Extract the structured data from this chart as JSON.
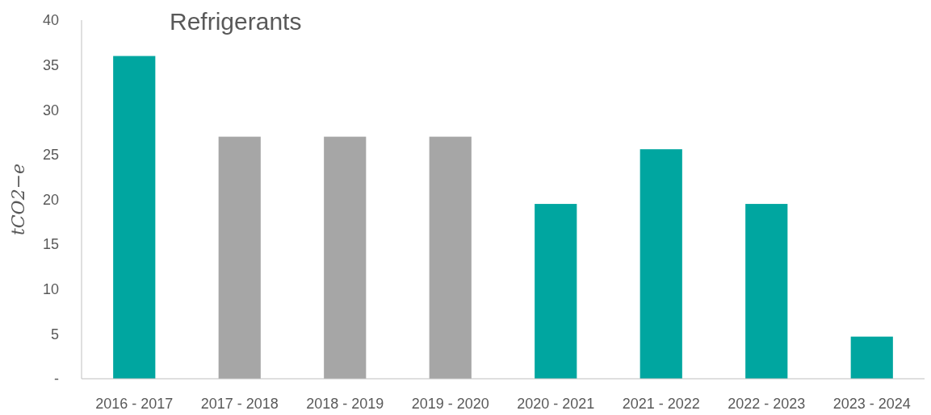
{
  "chart_data": {
    "type": "bar",
    "title": "Refrigerants",
    "ylabel": "tCO2−e",
    "categories": [
      "2016 - 2017",
      "2017 - 2018",
      "2018 - 2019",
      "2019 - 2020",
      "2020 - 2021",
      "2021 - 2022",
      "2022 - 2023",
      "2023 - 2024"
    ],
    "values": [
      36,
      27,
      27,
      27,
      19.5,
      25.6,
      19.5,
      4.7
    ],
    "colors": [
      "#00a6a0",
      "#a6a6a6",
      "#a6a6a6",
      "#a6a6a6",
      "#00a6a0",
      "#00a6a0",
      "#00a6a0",
      "#00a6a0"
    ],
    "ylim": [
      0,
      40
    ],
    "yticks": [
      {
        "value": 0,
        "label": "-"
      },
      5,
      10,
      15,
      20,
      25,
      30,
      35,
      40
    ],
    "grid": false
  }
}
